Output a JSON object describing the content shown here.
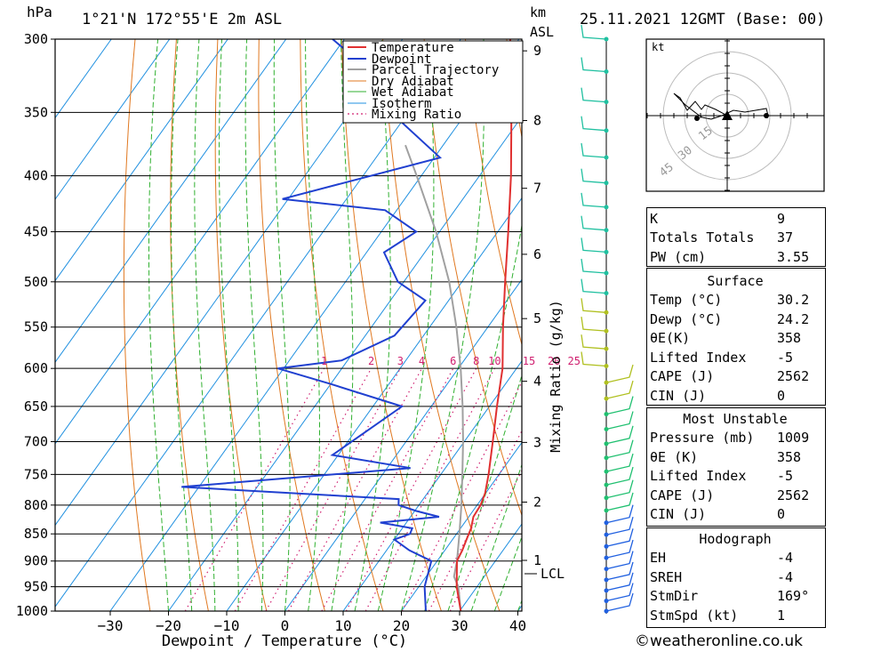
{
  "header": {
    "hpa_unit": "hPa",
    "location": "1°21'N 172°55'E 2m ASL",
    "km_unit": "km",
    "asl": "ASL",
    "datetime": "25.11.2021 12GMT (Base: 00)"
  },
  "chart_data": {
    "type": "skew-t",
    "xlabel": "Dewpoint / Temperature (°C)",
    "ylabel_left": "hPa",
    "ylabel_right": "Mixing Ratio (g/kg)",
    "pressure_levels": [
      300,
      350,
      400,
      450,
      500,
      550,
      600,
      650,
      700,
      750,
      800,
      850,
      900,
      950,
      1000
    ],
    "temp_ticks": [
      -30,
      -20,
      -10,
      0,
      10,
      20,
      30,
      40
    ],
    "height_km_ticks": [
      1,
      2,
      3,
      4,
      5,
      6,
      7,
      8,
      9
    ],
    "lcl_label": "LCL",
    "mixing_ratio_labels": [
      "1",
      "2",
      "3",
      "4",
      "6",
      "8",
      "10",
      "15",
      "20",
      "25"
    ],
    "legend": [
      "Temperature",
      "Dewpoint",
      "Parcel Trajectory",
      "Dry Adiabat",
      "Wet Adiabat",
      "Isotherm",
      "Mixing Ratio"
    ],
    "series": [
      {
        "name": "Temperature",
        "color": "#e03030",
        "points": [
          [
            1000,
            30.2
          ],
          [
            950,
            26.5
          ],
          [
            900,
            23.4
          ],
          [
            880,
            23.0
          ],
          [
            860,
            22.4
          ],
          [
            840,
            21.8
          ],
          [
            820,
            20.8
          ],
          [
            800,
            20.6
          ],
          [
            780,
            19.9
          ],
          [
            750,
            18.2
          ],
          [
            700,
            14.9
          ],
          [
            650,
            11.3
          ],
          [
            600,
            7.6
          ],
          [
            550,
            2.6
          ],
          [
            500,
            -2.6
          ],
          [
            450,
            -8.2
          ],
          [
            400,
            -14.6
          ],
          [
            350,
            -22.3
          ],
          [
            300,
            -31.5
          ]
        ]
      },
      {
        "name": "Dewpoint",
        "color": "#2040d0",
        "points": [
          [
            1000,
            24.2
          ],
          [
            950,
            21.0
          ],
          [
            900,
            19.0
          ],
          [
            880,
            13.9
          ],
          [
            860,
            10.0
          ],
          [
            850,
            12.0
          ],
          [
            840,
            11.7
          ],
          [
            830,
            5.5
          ],
          [
            820,
            14.9
          ],
          [
            810,
            10.3
          ],
          [
            800,
            6.5
          ],
          [
            790,
            5.8
          ],
          [
            770,
            -33.0
          ],
          [
            740,
            4.0
          ],
          [
            720,
            -11.0
          ],
          [
            650,
            -5.0
          ],
          [
            620,
            -20.0
          ],
          [
            600,
            -31.0
          ],
          [
            590,
            -21.0
          ],
          [
            560,
            -15.0
          ],
          [
            520,
            -14.0
          ],
          [
            500,
            -21.0
          ],
          [
            470,
            -27.0
          ],
          [
            450,
            -24.0
          ],
          [
            430,
            -32.0
          ],
          [
            420,
            -51.0
          ],
          [
            385,
            -29.0
          ],
          [
            350,
            -43.0
          ],
          [
            320,
            -52.0
          ],
          [
            300,
            -62.0
          ]
        ]
      },
      {
        "name": "Parcel Trajectory",
        "color": "#a0a0a0",
        "points": [
          [
            1000,
            30.2
          ],
          [
            950,
            26.8
          ],
          [
            930,
            24.8
          ],
          [
            900,
            23.4
          ],
          [
            850,
            20.5
          ],
          [
            800,
            17.3
          ],
          [
            750,
            13.7
          ],
          [
            700,
            9.8
          ],
          [
            650,
            5.4
          ],
          [
            600,
            0.4
          ],
          [
            550,
            -5.4
          ],
          [
            500,
            -12.2
          ],
          [
            450,
            -20.6
          ],
          [
            400,
            -30.8
          ],
          [
            375,
            -36.5
          ]
        ]
      }
    ],
    "wind_profile": {
      "count": 34,
      "unit": "kt"
    },
    "hodograph": {
      "unit": "kt",
      "ring_labels": [
        "15",
        "30",
        "45"
      ]
    }
  },
  "indices": [
    {
      "label": "K",
      "value": "9"
    },
    {
      "label": "Totals Totals",
      "value": "37"
    },
    {
      "label": "PW (cm)",
      "value": "3.55"
    }
  ],
  "surface": {
    "title": "Surface",
    "rows": [
      {
        "label": "Temp (°C)",
        "value": "30.2"
      },
      {
        "label": "Dewp (°C)",
        "value": "24.2"
      },
      {
        "label": "θE(K)",
        "value": "358"
      },
      {
        "label": "Lifted Index",
        "value": "-5"
      },
      {
        "label": "CAPE (J)",
        "value": "2562"
      },
      {
        "label": "CIN (J)",
        "value": "0"
      }
    ]
  },
  "most_unstable": {
    "title": "Most Unstable",
    "rows": [
      {
        "label": "Pressure (mb)",
        "value": "1009"
      },
      {
        "label": "θE (K)",
        "value": "358"
      },
      {
        "label": "Lifted Index",
        "value": "-5"
      },
      {
        "label": "CAPE (J)",
        "value": "2562"
      },
      {
        "label": "CIN (J)",
        "value": "0"
      }
    ]
  },
  "hodograph_table": {
    "title": "Hodograph",
    "rows": [
      {
        "label": "EH",
        "value": "-4"
      },
      {
        "label": "SREH",
        "value": "-4"
      },
      {
        "label": "StmDir",
        "value": "169°"
      },
      {
        "label": "StmSpd (kt)",
        "value": "1"
      }
    ]
  },
  "footer": "©weatheronline.co.uk"
}
